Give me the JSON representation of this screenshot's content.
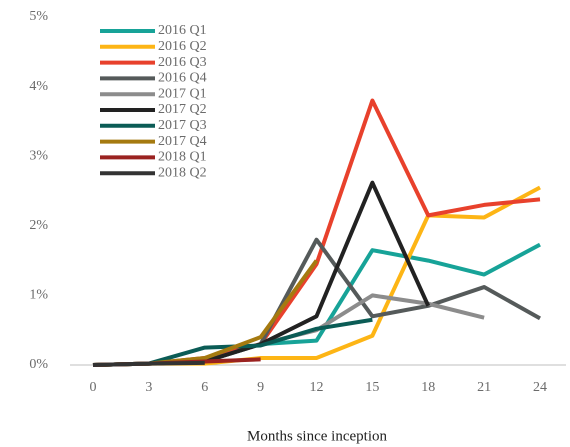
{
  "chart_data": {
    "type": "line",
    "x_label": "Months since inception",
    "x": [
      0,
      3,
      6,
      9,
      12,
      15,
      18,
      21,
      24
    ],
    "xlim": [
      0,
      24
    ],
    "xticks": [
      0,
      3,
      6,
      9,
      12,
      15,
      18,
      21,
      24
    ],
    "ylim": [
      0,
      5
    ],
    "yticks": [
      {
        "value": 0,
        "label": "0%"
      },
      {
        "value": 1,
        "label": "1%"
      },
      {
        "value": 2,
        "label": "2%"
      },
      {
        "value": 3,
        "label": "3%"
      },
      {
        "value": 4,
        "label": "4%"
      },
      {
        "value": 5,
        "label": "5%"
      }
    ],
    "grid": false,
    "legend": "upper left",
    "series": [
      {
        "name": "2016 Q1",
        "color": "#17a398",
        "values": [
          0,
          0.02,
          0.05,
          0.3,
          0.35,
          1.65,
          1.5,
          1.3,
          1.73
        ]
      },
      {
        "name": "2016 Q2",
        "color": "#fdb515",
        "values": [
          0,
          0.02,
          0.02,
          0.1,
          0.1,
          0.42,
          2.15,
          2.12,
          2.55
        ]
      },
      {
        "name": "2016 Q3",
        "color": "#e8412c",
        "values": [
          0,
          0.02,
          0.1,
          0.3,
          1.45,
          3.8,
          2.15,
          2.3,
          2.38
        ]
      },
      {
        "name": "2016 Q4",
        "color": "#555a5a",
        "values": [
          0,
          0.02,
          0.05,
          0.3,
          1.8,
          0.7,
          0.85,
          1.12,
          0.67
        ]
      },
      {
        "name": "2017 Q1",
        "color": "#8c8c8c",
        "values": [
          0,
          0.02,
          0.05,
          0.3,
          0.5,
          1.0,
          0.88,
          0.68,
          null
        ]
      },
      {
        "name": "2017 Q2",
        "color": "#222222",
        "values": [
          0,
          0.02,
          0.05,
          0.3,
          0.7,
          2.62,
          0.85,
          null,
          null
        ]
      },
      {
        "name": "2017 Q3",
        "color": "#0b5c56",
        "values": [
          0,
          0.02,
          0.25,
          0.28,
          0.52,
          0.65,
          null,
          null,
          null
        ]
      },
      {
        "name": "2017 Q4",
        "color": "#a57a10",
        "values": [
          0,
          0.02,
          0.1,
          0.4,
          1.5,
          null,
          null,
          null,
          null
        ]
      },
      {
        "name": "2018 Q1",
        "color": "#9a2220",
        "values": [
          0,
          0.02,
          0.05,
          0.08,
          null,
          null,
          null,
          null,
          null
        ]
      },
      {
        "name": "2018 Q2",
        "color": "#333333",
        "values": [
          0,
          0.02,
          0.03,
          null,
          null,
          null,
          null,
          null,
          null
        ]
      }
    ]
  }
}
